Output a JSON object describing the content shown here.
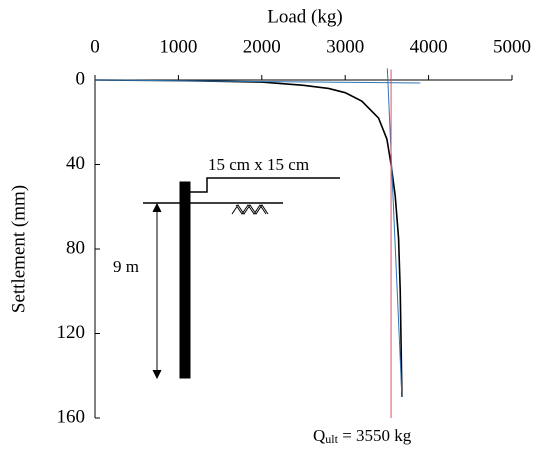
{
  "chart_data": {
    "type": "line",
    "x_label": "Load (kg)",
    "y_label": "Settlement (mm)",
    "xlim": [
      0,
      5000
    ],
    "xticks": [
      0,
      1000,
      2000,
      3000,
      4000,
      5000
    ],
    "ylim": [
      0,
      160
    ],
    "yticks": [
      0,
      40,
      80,
      120,
      160
    ],
    "y_reversed": true,
    "series": [
      {
        "color": "#000000",
        "x": [
          0,
          1000,
          2000,
          2500,
          2800,
          3000,
          3200,
          3400,
          3500,
          3550,
          3600,
          3640,
          3660,
          3670,
          3680
        ],
        "values": [
          0,
          0.3,
          1,
          2.5,
          4,
          6,
          10,
          18,
          28,
          40,
          55,
          75,
          100,
          125,
          150
        ]
      },
      {
        "color": "#2e75b6",
        "x": [
          0,
          3900
        ],
        "values": [
          0,
          1.4
        ]
      },
      {
        "color": "#2e75b6",
        "x": [
          3505,
          3680
        ],
        "values": [
          -5.5,
          150
        ]
      },
      {
        "color": "#e0506a",
        "x": [
          3550,
          3550
        ],
        "values": [
          -5,
          160
        ]
      }
    ],
    "annotations": {
      "q": "Q",
      "q_sub": "ult",
      "q_rest": " = 3550 kg",
      "pile_size": "15 cm x 15 cm",
      "pile_length": "9 m"
    }
  }
}
